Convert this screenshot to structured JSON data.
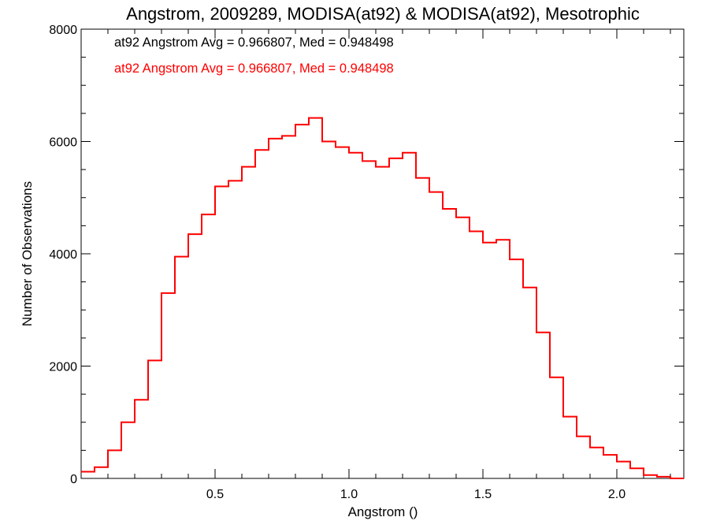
{
  "chart_data": {
    "type": "line",
    "title": "Angstrom, 2009289, MODISA(at92) & MODISA(at92), Mesotrophic",
    "xlabel": "Angstrom ()",
    "ylabel": "Number of Observations",
    "xlim": [
      0.0,
      2.25
    ],
    "ylim": [
      0,
      8000
    ],
    "x_ticks": [
      0.5,
      1.0,
      1.5,
      2.0
    ],
    "x_tick_labels": [
      "0.5",
      "1.0",
      "1.5",
      "2.0"
    ],
    "y_ticks": [
      0,
      2000,
      4000,
      6000,
      8000
    ],
    "y_tick_labels": [
      "0",
      "2000",
      "4000",
      "6000",
      "8000"
    ],
    "grid": false,
    "annotations": [
      {
        "text": "at92 Angstrom Avg = 0.966807, Med = 0.948498",
        "color": "#000000"
      },
      {
        "text": "at92 Angstrom Avg = 0.966807, Med = 0.948498",
        "color": "#ff0000"
      }
    ],
    "series": [
      {
        "color": "#ff0000",
        "x": [
          0.0,
          0.05,
          0.1,
          0.15,
          0.2,
          0.25,
          0.3,
          0.35,
          0.4,
          0.45,
          0.5,
          0.55,
          0.6,
          0.65,
          0.7,
          0.75,
          0.8,
          0.85,
          0.9,
          0.95,
          1.0,
          1.05,
          1.1,
          1.15,
          1.2,
          1.25,
          1.3,
          1.35,
          1.4,
          1.45,
          1.5,
          1.55,
          1.6,
          1.65,
          1.7,
          1.75,
          1.8,
          1.85,
          1.9,
          1.95,
          2.0,
          2.05,
          2.1,
          2.15,
          2.2,
          2.25
        ],
        "values": [
          120,
          200,
          500,
          1000,
          1400,
          2100,
          3300,
          3950,
          4350,
          4700,
          5200,
          5300,
          5550,
          5850,
          6050,
          6100,
          6300,
          6420,
          6000,
          5900,
          5800,
          5650,
          5550,
          5700,
          5800,
          5350,
          5100,
          4800,
          4650,
          4400,
          4200,
          4250,
          3900,
          3400,
          2600,
          1800,
          1100,
          750,
          550,
          420,
          300,
          180,
          60,
          30,
          0,
          0
        ]
      }
    ]
  }
}
